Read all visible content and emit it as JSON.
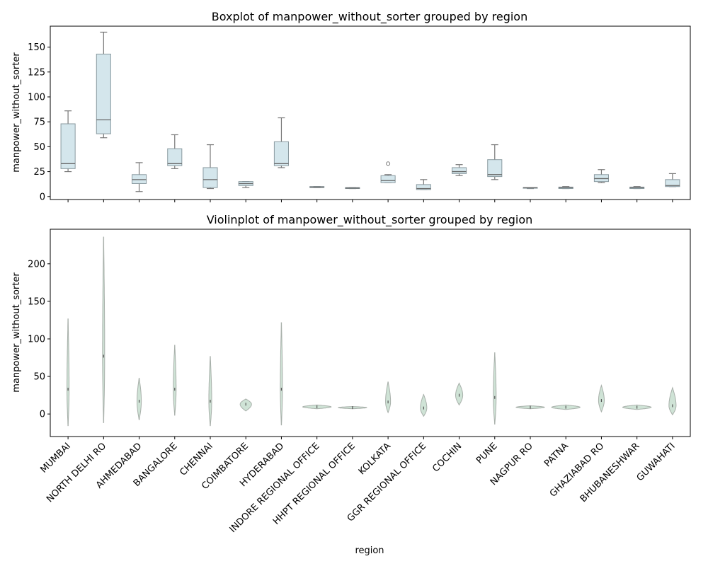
{
  "chart_data": [
    {
      "type": "box",
      "title": "Boxplot of manpower_without_sorter grouped by region",
      "xlabel": "",
      "ylabel": "manpower_without_sorter",
      "ylim": [
        -3,
        171
      ],
      "yticks": [
        0,
        25,
        50,
        75,
        100,
        125,
        150
      ],
      "categories": [
        "MUMBAI",
        "NORTH DELHI RO",
        "AHMEDABAD",
        "BANGALORE",
        "CHENNAI",
        "COIMBATORE",
        "HYDERABAD",
        "INDORE REGIONAL OFFICE",
        "HHPT REGIONAL OFFICE",
        "KOLKATA",
        "GGR REGIONAL OFFICE",
        "COCHIN",
        "PUNE",
        "NAGPUR RO",
        "PATNA",
        "GHAZIABAD RO",
        "BHUBANESHWAR",
        "GUWAHATI"
      ],
      "boxes": [
        {
          "whislo": 25,
          "q1": 28,
          "med": 33,
          "q3": 73,
          "whishi": 86,
          "fliers": []
        },
        {
          "whislo": 59,
          "q1": 63,
          "med": 77,
          "q3": 143,
          "whishi": 165,
          "fliers": []
        },
        {
          "whislo": 5,
          "q1": 13,
          "med": 17,
          "q3": 22,
          "whishi": 34,
          "fliers": []
        },
        {
          "whislo": 28,
          "q1": 31,
          "med": 33,
          "q3": 48,
          "whishi": 62,
          "fliers": []
        },
        {
          "whislo": 8,
          "q1": 9,
          "med": 17,
          "q3": 29,
          "whishi": 52,
          "fliers": []
        },
        {
          "whislo": 9,
          "q1": 11,
          "med": 13,
          "q3": 15,
          "whishi": 15,
          "fliers": []
        },
        {
          "whislo": 29,
          "q1": 31,
          "med": 33,
          "q3": 55,
          "whishi": 79,
          "fliers": []
        },
        {
          "whislo": 9,
          "q1": 9,
          "med": 9.5,
          "q3": 10,
          "whishi": 10,
          "fliers": []
        },
        {
          "whislo": 8,
          "q1": 8,
          "med": 8.5,
          "q3": 9,
          "whishi": 9,
          "fliers": []
        },
        {
          "whislo": 14,
          "q1": 14,
          "med": 16,
          "q3": 21,
          "whishi": 22,
          "fliers": [
            33
          ]
        },
        {
          "whislo": 7,
          "q1": 7,
          "med": 8,
          "q3": 12,
          "whishi": 17,
          "fliers": []
        },
        {
          "whislo": 21,
          "q1": 23,
          "med": 25,
          "q3": 29,
          "whishi": 32,
          "fliers": []
        },
        {
          "whislo": 17,
          "q1": 20,
          "med": 22,
          "q3": 37,
          "whishi": 52,
          "fliers": []
        },
        {
          "whislo": 8,
          "q1": 8.5,
          "med": 9,
          "q3": 9,
          "whishi": 9,
          "fliers": []
        },
        {
          "whislo": 8,
          "q1": 8,
          "med": 9,
          "q3": 9.5,
          "whishi": 10,
          "fliers": []
        },
        {
          "whislo": 14,
          "q1": 15,
          "med": 18,
          "q3": 22,
          "whishi": 27,
          "fliers": []
        },
        {
          "whislo": 8,
          "q1": 8,
          "med": 9,
          "q3": 9.5,
          "whishi": 10,
          "fliers": []
        },
        {
          "whislo": 10,
          "q1": 10,
          "med": 11,
          "q3": 17,
          "whishi": 23,
          "fliers": []
        }
      ]
    },
    {
      "type": "violin",
      "title": "Violinplot of manpower_without_sorter grouped by region",
      "xlabel": "region",
      "ylabel": "manpower_without_sorter",
      "ylim": [
        -30,
        246
      ],
      "yticks": [
        0,
        50,
        100,
        150,
        200
      ],
      "categories": [
        "MUMBAI",
        "NORTH DELHI RO",
        "AHMEDABAD",
        "BANGALORE",
        "CHENNAI",
        "COIMBATORE",
        "HYDERABAD",
        "INDORE REGIONAL OFFICE",
        "HHPT REGIONAL OFFICE",
        "KOLKATA",
        "GGR REGIONAL OFFICE",
        "COCHIN",
        "PUNE",
        "NAGPUR RO",
        "PATNA",
        "GHAZIABAD RO",
        "BHUBANESHWAR",
        "GUWAHATI"
      ],
      "violins": [
        {
          "min": -16,
          "max": 127,
          "max_halfwidth": 0.03,
          "median": 33
        },
        {
          "min": -12,
          "max": 236,
          "max_halfwidth": 0.03,
          "median": 77
        },
        {
          "min": -8,
          "max": 48,
          "max_halfwidth": 0.06,
          "median": 17
        },
        {
          "min": -2,
          "max": 92,
          "max_halfwidth": 0.04,
          "median": 33
        },
        {
          "min": -16,
          "max": 77,
          "max_halfwidth": 0.04,
          "median": 17
        },
        {
          "min": 4,
          "max": 20,
          "max_halfwidth": 0.16,
          "median": 13
        },
        {
          "min": -15,
          "max": 122,
          "max_halfwidth": 0.03,
          "median": 33
        },
        {
          "min": 7,
          "max": 12,
          "max_halfwidth": 0.4,
          "median": 9.5
        },
        {
          "min": 7,
          "max": 10,
          "max_halfwidth": 0.4,
          "median": 8.5
        },
        {
          "min": 2,
          "max": 43,
          "max_halfwidth": 0.07,
          "median": 16
        },
        {
          "min": -3,
          "max": 26,
          "max_halfwidth": 0.09,
          "median": 8
        },
        {
          "min": 12,
          "max": 41,
          "max_halfwidth": 0.1,
          "median": 25
        },
        {
          "min": -14,
          "max": 82,
          "max_halfwidth": 0.04,
          "median": 22
        },
        {
          "min": 7,
          "max": 11,
          "max_halfwidth": 0.4,
          "median": 9
        },
        {
          "min": 6,
          "max": 12,
          "max_halfwidth": 0.4,
          "median": 9
        },
        {
          "min": 3,
          "max": 38,
          "max_halfwidth": 0.08,
          "median": 18
        },
        {
          "min": 6,
          "max": 12,
          "max_halfwidth": 0.4,
          "median": 9
        },
        {
          "min": -1,
          "max": 35,
          "max_halfwidth": 0.1,
          "median": 11
        }
      ]
    }
  ],
  "colors": {
    "box_fill": "#d4e6ec",
    "box_edge": "#8a9aa0",
    "whisker": "#777777",
    "median": "#666666",
    "violin_fill": "#cfe3d6",
    "violin_edge": "#a8b0aa",
    "violin_line": "#c8c8c8",
    "axes": "#000000"
  }
}
